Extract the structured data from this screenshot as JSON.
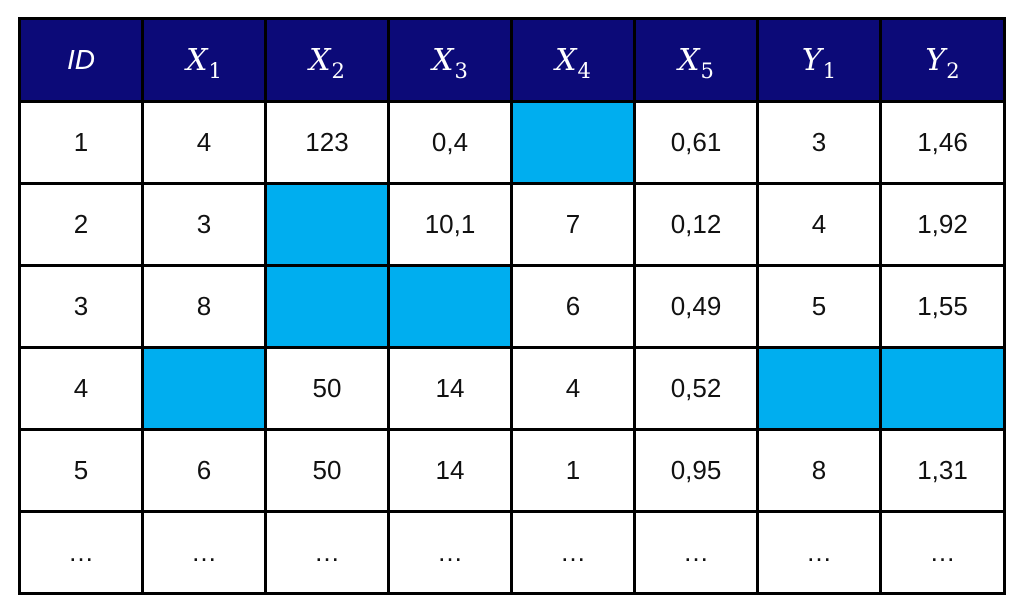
{
  "colors": {
    "header_background": "#0c0a78",
    "header_text": "#ffffff",
    "missing_cell": "#00aeef",
    "border": "#000000"
  },
  "header": [
    {
      "base": "ID",
      "sub": ""
    },
    {
      "base": "X",
      "sub": "1"
    },
    {
      "base": "X",
      "sub": "2"
    },
    {
      "base": "X",
      "sub": "3"
    },
    {
      "base": "X",
      "sub": "4"
    },
    {
      "base": "X",
      "sub": "5"
    },
    {
      "base": "Y",
      "sub": "1"
    },
    {
      "base": "Y",
      "sub": "2"
    }
  ],
  "rows": [
    [
      "1",
      "4",
      "123",
      "0,4",
      null,
      "0,61",
      "3",
      "1,46"
    ],
    [
      "2",
      "3",
      null,
      "10,1",
      "7",
      "0,12",
      "4",
      "1,92"
    ],
    [
      "3",
      "8",
      null,
      null,
      "6",
      "0,49",
      "5",
      "1,55"
    ],
    [
      "4",
      null,
      "50",
      "14",
      "4",
      "0,52",
      null,
      null
    ],
    [
      "5",
      "6",
      "50",
      "14",
      "1",
      "0,95",
      "8",
      "1,31"
    ],
    [
      "…",
      "…",
      "…",
      "…",
      "…",
      "…",
      "…",
      "…"
    ]
  ]
}
